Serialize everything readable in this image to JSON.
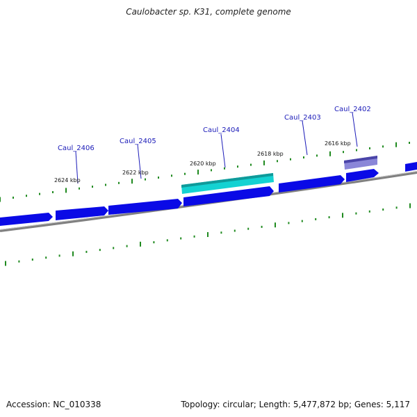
{
  "title": "Caulobacter sp. K31, complete genome",
  "footer": {
    "accession": "Accession: NC_010338",
    "summary": "Topology: circular; Length: 5,477,872 bp; Genes: 5,117"
  },
  "colors": {
    "background": "#ffffff",
    "backbone": "#808080",
    "gene_blue": "#0a0ae6",
    "gene_cyan": "#14d2d2",
    "gene_purple": "#6a64c8",
    "tick_green": "#1f8a1f",
    "label_blue": "#1a1ab8"
  },
  "gene_labels": [
    "Caul_2406",
    "Caul_2405",
    "Caul_2404",
    "Caul_2403",
    "Caul_2402"
  ],
  "kbp_labels": [
    "2624 kbp",
    "2622 kbp",
    "2620 kbp",
    "2618 kbp",
    "2616 kbp"
  ]
}
